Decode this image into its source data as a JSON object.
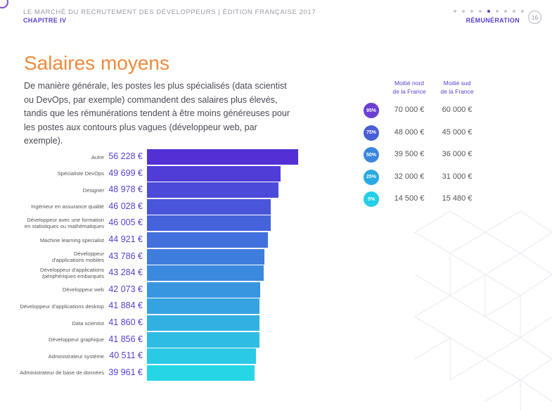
{
  "header": {
    "report_title": "LE MARCHÉ DU RECRUTEMENT DES DÉVELOPPEURS | ÉDITION FRANÇAISE 2017",
    "chapter": "CHAPITRE IV",
    "section": "RÉMUNÉRATION",
    "page_number": "16",
    "nav_dots": 9,
    "active_dot": 4
  },
  "title": "Salaires moyens",
  "intro": "De manière générale, les postes les plus spécialisés (data scientist ou DevOps, par exemple) commandent des salaires plus élevés, tandis que les rémunérations tendent à être moins généreuses pour les postes aux contours plus vagues (développeur web, par exemple).",
  "colors": {
    "accent_orange": "#ee8a3c",
    "accent_purple": "#5b3fd1",
    "bar_gradient_start": "#5330d6",
    "bar_gradient_end": "#27d6e6"
  },
  "chart_data": {
    "type": "bar",
    "orientation": "horizontal",
    "title": "Salaires moyens",
    "categories": [
      "Autre",
      "Spécialiste DevOps",
      "Designer",
      "Ingénieur en assurance qualité",
      "Développeur avec une formation en statistiques ou mathématiques",
      "Machine learning specialist",
      "Développeur d'applications mobiles",
      "Développeur d'applications /périphériques embarqués",
      "Développeur web",
      "Développeur d'applications desktop",
      "Data scientist",
      "Développeur graphique",
      "Administrateur système",
      "Administrateur de base de données"
    ],
    "display_lines": [
      [
        "Autre"
      ],
      [
        "Spécialiste DevOps"
      ],
      [
        "Designer"
      ],
      [
        "Ingénieur en assurance qualité"
      ],
      [
        "Développeur avec une formation",
        "en statistiques ou mathématiques"
      ],
      [
        "Machine learning specialist"
      ],
      [
        "Développeur",
        "d'applications mobiles"
      ],
      [
        "Développeur d'applications",
        "/périphériques embarqués"
      ],
      [
        "Développeur web"
      ],
      [
        "Développeur d'applications desktop"
      ],
      [
        "Data scientist"
      ],
      [
        "Développeur graphique"
      ],
      [
        "Administrateur système"
      ],
      [
        "Administrateur de base de données"
      ]
    ],
    "values": [
      56228,
      49699,
      48978,
      46028,
      46005,
      44921,
      43786,
      43284,
      42073,
      41884,
      41860,
      41856,
      40511,
      39961
    ],
    "value_labels": [
      "56 228 €",
      "49 699 €",
      "48 978 €",
      "46 028 €",
      "46 005 €",
      "44 921 €",
      "43 786 €",
      "43 284 €",
      "42 073 €",
      "41 884 €",
      "41 860 €",
      "41 856 €",
      "40 511 €",
      "39 961 €"
    ],
    "unit": "€",
    "xlim": [
      0,
      56228
    ],
    "grid": false,
    "legend": "none"
  },
  "percentile_table": {
    "headers": [
      "Moitié nord de la France",
      "Moitié sud de la France"
    ],
    "header_lines": [
      [
        "Moitié nord",
        "de la France"
      ],
      [
        "Moitié sud",
        "de la France"
      ]
    ],
    "rows": [
      {
        "percentile": "95%",
        "color": "#6a3fd1",
        "north": "70 000 €",
        "south": "60 000 €"
      },
      {
        "percentile": "75%",
        "color": "#4a5fd6",
        "north": "48 000 €",
        "south": "45 000 €"
      },
      {
        "percentile": "50%",
        "color": "#3a86dd",
        "north": "39 500 €",
        "south": "36 000 €"
      },
      {
        "percentile": "25%",
        "color": "#2aa9e3",
        "north": "32 000 €",
        "south": "31 000 €"
      },
      {
        "percentile": "5%",
        "color": "#23cfe6",
        "north": "14 500 €",
        "south": "15 480 €"
      }
    ]
  }
}
